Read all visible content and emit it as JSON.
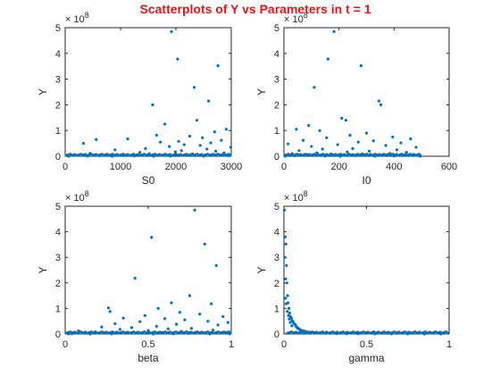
{
  "figure_title": "Scatterplots of Y vs Parameters in t = 1",
  "colors": {
    "points": "#0072bd",
    "title": "#e8151b",
    "axes": "#262626"
  },
  "chart_data": [
    {
      "type": "scatter",
      "xlabel": "S0",
      "ylabel": "Y",
      "xlim": [
        0,
        3000
      ],
      "ylim": [
        0,
        500000000
      ],
      "xticks": [
        "0",
        "1000",
        "2000",
        "3000"
      ],
      "yticks": [
        "0",
        "1",
        "2",
        "3",
        "4",
        "5"
      ],
      "y_exponent_base": "× 10",
      "y_exponent_power": "8",
      "points": [
        [
          1920,
          485000000
        ],
        [
          2030,
          378000000
        ],
        [
          2760,
          352000000
        ],
        [
          2330,
          268000000
        ],
        [
          2590,
          215000000
        ],
        [
          1580,
          200000000
        ],
        [
          2380,
          140000000
        ],
        [
          1800,
          125000000
        ],
        [
          2910,
          105000000
        ],
        [
          2700,
          95000000
        ],
        [
          1650,
          82000000
        ],
        [
          2250,
          78000000
        ],
        [
          2480,
          72000000
        ],
        [
          1130,
          68000000
        ],
        [
          560,
          65000000
        ],
        [
          2820,
          62000000
        ],
        [
          2050,
          58000000
        ],
        [
          1720,
          55000000
        ],
        [
          2630,
          52000000
        ],
        [
          330,
          50000000
        ],
        [
          2150,
          45000000
        ],
        [
          2440,
          42000000
        ],
        [
          1880,
          38000000
        ],
        [
          2990,
          35000000
        ],
        [
          1450,
          30000000
        ],
        [
          2560,
          28000000
        ],
        [
          900,
          25000000
        ],
        [
          2100,
          22000000
        ],
        [
          2720,
          20000000
        ],
        [
          1990,
          17000000
        ],
        [
          1350,
          15000000
        ],
        [
          2870,
          13000000
        ],
        [
          450,
          11000000
        ],
        [
          1520,
          10000000
        ],
        [
          2300,
          9000000
        ],
        [
          760,
          8000000
        ],
        [
          2680,
          7000000
        ],
        [
          1050,
          6000000
        ],
        [
          2200,
          5000000
        ],
        [
          1750,
          4000000
        ],
        [
          120,
          3000000
        ],
        [
          620,
          2000000
        ],
        [
          2950,
          2000000
        ],
        [
          1250,
          1000000
        ],
        [
          400,
          500000
        ],
        [
          1900,
          500000
        ],
        [
          2500,
          300000
        ],
        [
          850,
          200000
        ],
        [
          1600,
          100000
        ],
        [
          60,
          0
        ]
      ]
    },
    {
      "type": "scatter",
      "xlabel": "I0",
      "ylabel": "Y",
      "xlim": [
        0,
        600
      ],
      "ylim": [
        0,
        500000000
      ],
      "xticks": [
        "0",
        "200",
        "400",
        "600"
      ],
      "yticks": [
        "0",
        "1",
        "2",
        "3",
        "4",
        "5"
      ],
      "y_exponent_base": "× 10",
      "y_exponent_power": "8",
      "points": [
        [
          182,
          485000000
        ],
        [
          160,
          378000000
        ],
        [
          280,
          352000000
        ],
        [
          110,
          268000000
        ],
        [
          345,
          215000000
        ],
        [
          352,
          200000000
        ],
        [
          210,
          148000000
        ],
        [
          225,
          140000000
        ],
        [
          90,
          120000000
        ],
        [
          45,
          105000000
        ],
        [
          130,
          100000000
        ],
        [
          300,
          90000000
        ],
        [
          240,
          82000000
        ],
        [
          395,
          75000000
        ],
        [
          155,
          72000000
        ],
        [
          460,
          68000000
        ],
        [
          70,
          62000000
        ],
        [
          325,
          60000000
        ],
        [
          270,
          55000000
        ],
        [
          425,
          52000000
        ],
        [
          15,
          48000000
        ],
        [
          195,
          45000000
        ],
        [
          370,
          42000000
        ],
        [
          100,
          38000000
        ],
        [
          480,
          35000000
        ],
        [
          250,
          30000000
        ],
        [
          140,
          28000000
        ],
        [
          410,
          25000000
        ],
        [
          55,
          22000000
        ],
        [
          310,
          20000000
        ],
        [
          230,
          17000000
        ],
        [
          445,
          15000000
        ],
        [
          120,
          13000000
        ],
        [
          385,
          11000000
        ],
        [
          30,
          10000000
        ],
        [
          285,
          9000000
        ],
        [
          170,
          8000000
        ],
        [
          470,
          7000000
        ],
        [
          85,
          6000000
        ],
        [
          355,
          5000000
        ],
        [
          215,
          4000000
        ],
        [
          490,
          3000000
        ],
        [
          40,
          2000000
        ],
        [
          260,
          2000000
        ],
        [
          400,
          1000000
        ],
        [
          150,
          500000
        ],
        [
          330,
          300000
        ],
        [
          5,
          200000
        ],
        [
          495,
          100000
        ],
        [
          205,
          0
        ]
      ]
    },
    {
      "type": "scatter",
      "xlabel": "beta",
      "ylabel": "Y",
      "xlim": [
        0,
        1
      ],
      "ylim": [
        0,
        500000000
      ],
      "xticks": [
        "0",
        "0.5",
        "1"
      ],
      "yticks": [
        "0",
        "1",
        "2",
        "3",
        "4",
        "5"
      ],
      "y_exponent_base": "× 10",
      "y_exponent_power": "8",
      "points": [
        [
          0.78,
          485000000
        ],
        [
          0.52,
          378000000
        ],
        [
          0.84,
          352000000
        ],
        [
          0.91,
          268000000
        ],
        [
          0.42,
          218000000
        ],
        [
          0.75,
          150000000
        ],
        [
          0.64,
          122000000
        ],
        [
          0.88,
          118000000
        ],
        [
          0.26,
          102000000
        ],
        [
          0.27,
          88000000
        ],
        [
          0.56,
          100000000
        ],
        [
          0.69,
          85000000
        ],
        [
          0.81,
          78000000
        ],
        [
          0.48,
          72000000
        ],
        [
          0.95,
          68000000
        ],
        [
          0.35,
          62000000
        ],
        [
          0.6,
          60000000
        ],
        [
          0.72,
          55000000
        ],
        [
          0.86,
          50000000
        ],
        [
          0.45,
          48000000
        ],
        [
          0.98,
          45000000
        ],
        [
          0.3,
          40000000
        ],
        [
          0.67,
          38000000
        ],
        [
          0.92,
          35000000
        ],
        [
          0.55,
          30000000
        ],
        [
          0.22,
          27000000
        ],
        [
          0.4,
          25000000
        ],
        [
          0.76,
          22000000
        ],
        [
          0.62,
          20000000
        ],
        [
          0.33,
          18000000
        ],
        [
          0.89,
          15000000
        ],
        [
          0.5,
          13000000
        ],
        [
          0.08,
          12000000
        ],
        [
          0.7,
          10000000
        ],
        [
          0.18,
          8000000
        ],
        [
          0.96,
          7000000
        ],
        [
          0.58,
          6000000
        ],
        [
          0.38,
          5000000
        ],
        [
          0.83,
          4000000
        ],
        [
          0.12,
          3000000
        ],
        [
          0.46,
          2000000
        ],
        [
          0.74,
          2000000
        ],
        [
          0.04,
          1000000
        ],
        [
          0.28,
          500000
        ],
        [
          0.65,
          400000
        ],
        [
          0.99,
          200000
        ],
        [
          0.15,
          100000
        ],
        [
          0.53,
          50000
        ],
        [
          0.02,
          0
        ],
        [
          0.87,
          0
        ]
      ]
    },
    {
      "type": "scatter",
      "xlabel": "gamma",
      "ylabel": "Y",
      "xlim": [
        0,
        1
      ],
      "ylim": [
        0,
        500000000
      ],
      "xticks": [
        "0",
        "0.5",
        "1"
      ],
      "yticks": [
        "0",
        "1",
        "2",
        "3",
        "4",
        "5"
      ],
      "y_exponent_base": "× 10",
      "y_exponent_power": "8",
      "points": [
        [
          0.003,
          485000000
        ],
        [
          0.008,
          380000000
        ],
        [
          0.012,
          352000000
        ],
        [
          0.006,
          300000000
        ],
        [
          0.015,
          268000000
        ],
        [
          0.01,
          215000000
        ],
        [
          0.018,
          200000000
        ],
        [
          0.022,
          150000000
        ],
        [
          0.009,
          140000000
        ],
        [
          0.025,
          122000000
        ],
        [
          0.014,
          118000000
        ],
        [
          0.03,
          100000000
        ],
        [
          0.02,
          88000000
        ],
        [
          0.035,
          82000000
        ],
        [
          0.028,
          72000000
        ],
        [
          0.04,
          68000000
        ],
        [
          0.045,
          62000000
        ],
        [
          0.032,
          58000000
        ],
        [
          0.05,
          52000000
        ],
        [
          0.055,
          48000000
        ],
        [
          0.038,
          45000000
        ],
        [
          0.06,
          42000000
        ],
        [
          0.065,
          38000000
        ],
        [
          0.07,
          35000000
        ],
        [
          0.048,
          32000000
        ],
        [
          0.075,
          28000000
        ],
        [
          0.08,
          25000000
        ],
        [
          0.085,
          22000000
        ],
        [
          0.09,
          20000000
        ],
        [
          0.095,
          18000000
        ],
        [
          0.1,
          15000000
        ],
        [
          0.11,
          13000000
        ],
        [
          0.12,
          11000000
        ],
        [
          0.13,
          10000000
        ],
        [
          0.14,
          8000000
        ],
        [
          0.15,
          7000000
        ],
        [
          0.16,
          6000000
        ],
        [
          0.18,
          5000000
        ],
        [
          0.2,
          4000000
        ],
        [
          0.22,
          3000000
        ],
        [
          0.25,
          2500000
        ],
        [
          0.28,
          2000000
        ],
        [
          0.32,
          1500000
        ],
        [
          0.38,
          1000000
        ],
        [
          0.45,
          800000
        ],
        [
          0.55,
          500000
        ],
        [
          0.65,
          300000
        ],
        [
          0.75,
          200000
        ],
        [
          0.85,
          100000
        ],
        [
          0.95,
          50000
        ]
      ]
    }
  ]
}
